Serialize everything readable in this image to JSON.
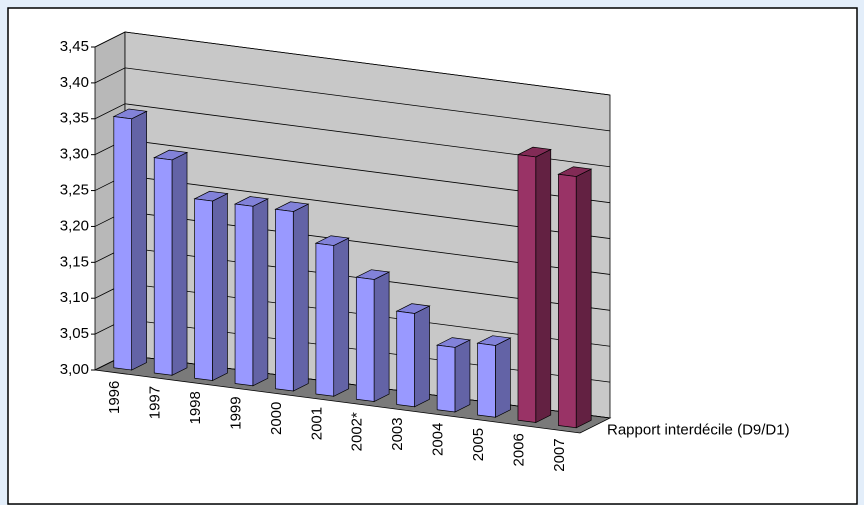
{
  "chart_data": {
    "type": "bar3d",
    "categories": [
      "1996",
      "1997",
      "1998",
      "1999",
      "2000",
      "2001",
      "2002*",
      "2003",
      "2004",
      "2005",
      "2006",
      "2007"
    ],
    "series": [
      {
        "name": "Rapport interdécile (D9/D1)",
        "values": [
          3.35,
          3.3,
          3.25,
          3.25,
          3.25,
          3.21,
          3.17,
          3.13,
          3.09,
          3.1,
          3.37,
          3.35
        ],
        "colors": [
          "#9999ff",
          "#9999ff",
          "#9999ff",
          "#9999ff",
          "#9999ff",
          "#9999ff",
          "#9999ff",
          "#9999ff",
          "#9999ff",
          "#9999ff",
          "#993366",
          "#993366"
        ]
      }
    ],
    "ylim": [
      3.0,
      3.45
    ],
    "yticks": [
      {
        "value": 3.0,
        "label": "3,00"
      },
      {
        "value": 3.05,
        "label": "3,05"
      },
      {
        "value": 3.1,
        "label": "3,10"
      },
      {
        "value": 3.15,
        "label": "3,15"
      },
      {
        "value": 3.2,
        "label": "3,20"
      },
      {
        "value": 3.25,
        "label": "3,25"
      },
      {
        "value": 3.3,
        "label": "3,30"
      },
      {
        "value": 3.35,
        "label": "3,35"
      },
      {
        "value": 3.4,
        "label": "3,40"
      },
      {
        "value": 3.45,
        "label": "3,45"
      }
    ],
    "grid": true
  }
}
